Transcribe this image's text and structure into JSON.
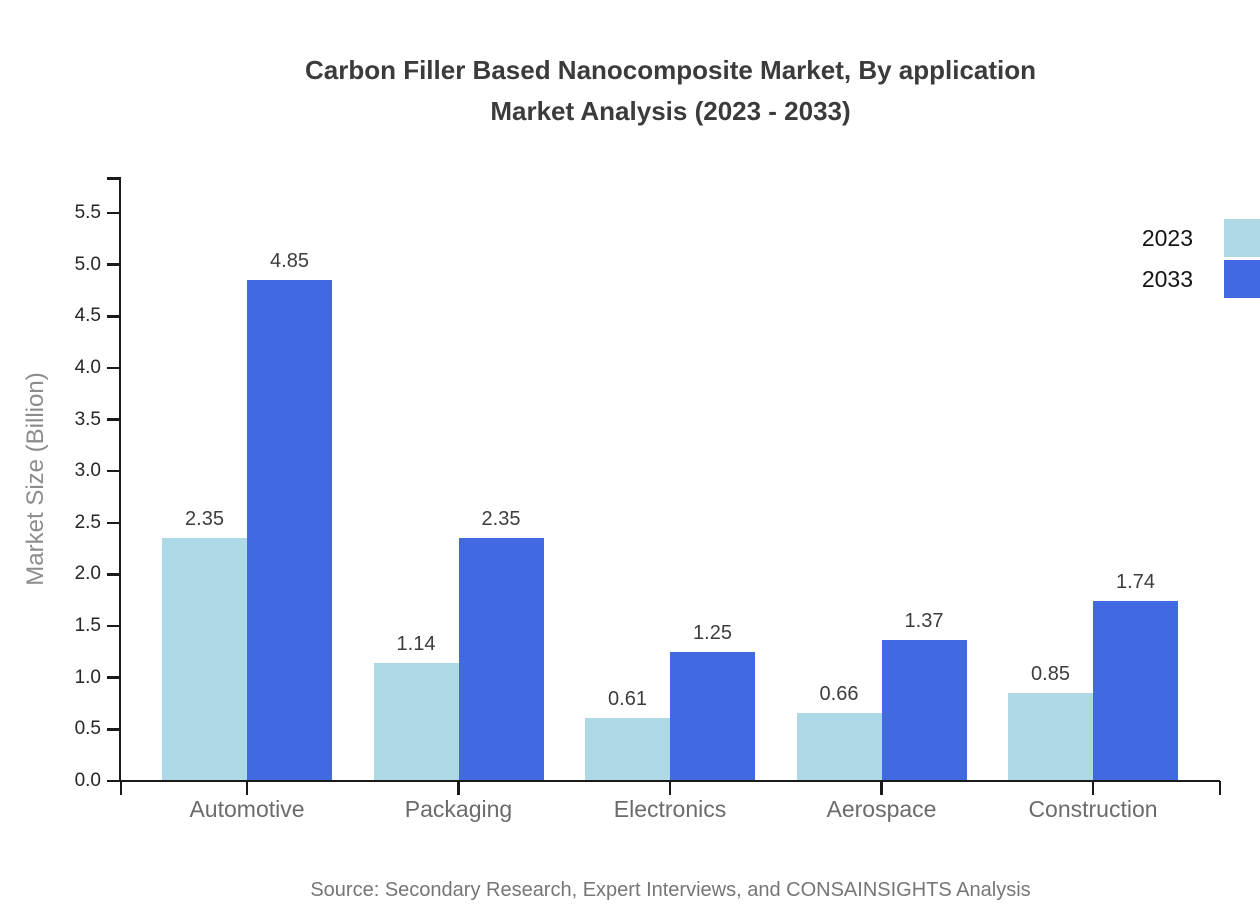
{
  "title": {
    "line1": "Carbon Filler Based Nanocomposite Market, By application",
    "line2": "Market Analysis (2023 - 2033)"
  },
  "source": "Source: Secondary Research, Expert Interviews, and CONSAINSIGHTS Analysis",
  "colors": {
    "series_2023": "#ADD8E6",
    "series_2033": "#4169E1",
    "axis": "#1a1a1a",
    "title_text": "#3b3b3b",
    "category_text": "#6b6b6b",
    "source_text": "#767676"
  },
  "chart_data": {
    "type": "bar",
    "title": "Carbon Filler Based Nanocomposite Market, By application Market Analysis (2023 - 2033)",
    "categories": [
      "Automotive",
      "Packaging",
      "Electronics",
      "Aerospace",
      "Construction"
    ],
    "series": [
      {
        "name": "2023",
        "color": "#ADD8E6",
        "values": [
          2.35,
          1.14,
          0.61,
          0.66,
          0.85
        ]
      },
      {
        "name": "2033",
        "color": "#4169E1",
        "values": [
          4.85,
          2.35,
          1.25,
          1.37,
          1.74
        ]
      }
    ],
    "xlabel": "",
    "ylabel": "Market Size (Billion)",
    "ylim": [
      0,
      5.5
    ],
    "y_ticks": [
      "0.0",
      "0.5",
      "1.0",
      "1.5",
      "2.0",
      "2.5",
      "3.0",
      "3.5",
      "4.0",
      "4.5",
      "5.0",
      "5.5"
    ],
    "grid": false,
    "legend_position": "top-right",
    "value_labels_shown": true
  }
}
